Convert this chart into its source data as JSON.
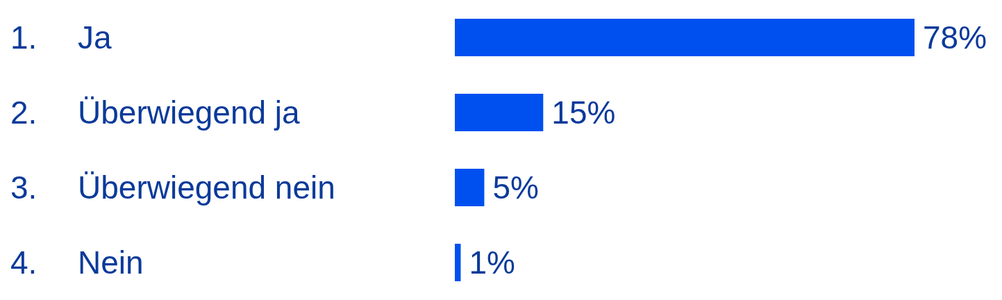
{
  "chart_data": {
    "type": "bar",
    "orientation": "horizontal",
    "categories": [
      "1. Ja",
      "2. Überwiegend ja",
      "3. Überwiegend nein",
      "4. Nein"
    ],
    "values": [
      78,
      15,
      5,
      1
    ],
    "value_labels": [
      "78%",
      "15%",
      "5%",
      "1%"
    ],
    "color": "#0050f0"
  }
}
